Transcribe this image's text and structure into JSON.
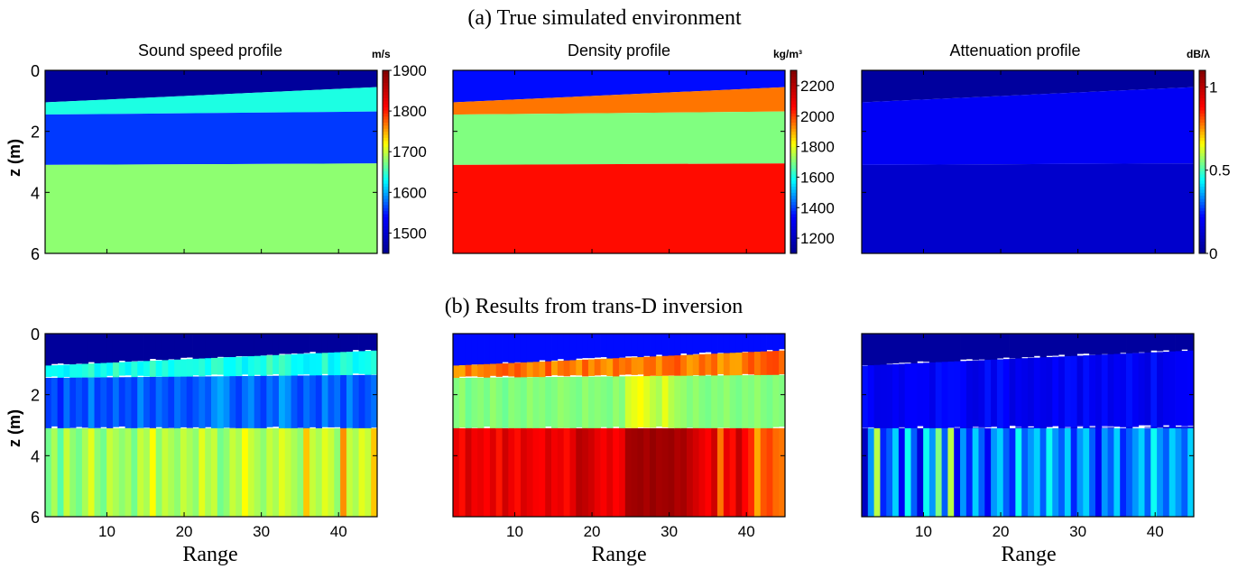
{
  "figure": {
    "title_a": "(a) True simulated environment",
    "title_b": "(b) Results from trans-D inversion",
    "ylabel": "z (m)",
    "xlabel": "Range"
  },
  "colormap": [
    "#00008f",
    "#0000ff",
    "#00ffff",
    "#ffff00",
    "#ff0000",
    "#800000"
  ],
  "chart_data": [
    {
      "type": "heatmap",
      "panel": "a",
      "title": "Sound speed profile",
      "unit": "m/s",
      "ylim": [
        6,
        0
      ],
      "yticks": [
        0,
        2,
        4,
        6
      ],
      "xlim": [
        2,
        45
      ],
      "clim": [
        1450,
        1900
      ],
      "cticks": [
        1500,
        1600,
        1700,
        1800,
        1900
      ],
      "layers": [
        {
          "top_start": 0.0,
          "top_end": 0.0,
          "value": 1460
        },
        {
          "top_start": 1.05,
          "top_end": 0.55,
          "value": 1640
        },
        {
          "top_start": 1.45,
          "top_end": 1.35,
          "value": 1560
        },
        {
          "top_start": 3.1,
          "top_end": 3.05,
          "value": 1680
        }
      ]
    },
    {
      "type": "heatmap",
      "panel": "a",
      "title": "Density profile",
      "unit": "kg/m³",
      "ylim": [
        6,
        0
      ],
      "yticks": [
        0,
        2,
        4,
        6
      ],
      "xlim": [
        2,
        45
      ],
      "clim": [
        1100,
        2300
      ],
      "cticks": [
        1200,
        1400,
        1600,
        1800,
        2000,
        2200
      ],
      "layers": [
        {
          "top_start": 0.0,
          "top_end": 0.0,
          "value": 1350
        },
        {
          "top_start": 1.05,
          "top_end": 0.55,
          "value": 1950
        },
        {
          "top_start": 1.45,
          "top_end": 1.35,
          "value": 1700
        },
        {
          "top_start": 3.1,
          "top_end": 3.05,
          "value": 2050
        }
      ]
    },
    {
      "type": "heatmap",
      "panel": "a",
      "title": "Attenuation profile",
      "unit": "dB/λ",
      "ylim": [
        6,
        0
      ],
      "yticks": [
        0,
        2,
        4,
        6
      ],
      "xlim": [
        2,
        45
      ],
      "clim": [
        0,
        1.1
      ],
      "cticks": [
        0,
        0.5,
        1
      ],
      "layers": [
        {
          "top_start": 0.0,
          "top_end": 0.0,
          "value": 0.03
        },
        {
          "top_start": 1.05,
          "top_end": 0.55,
          "value": 0.2
        },
        {
          "top_start": 3.1,
          "top_end": 3.05,
          "value": 0.12
        }
      ]
    },
    {
      "type": "heatmap",
      "panel": "b",
      "title": "",
      "ylim": [
        6,
        0
      ],
      "yticks": [
        0,
        2,
        4,
        6
      ],
      "xlim": [
        2,
        45
      ],
      "xticks": [
        10,
        20,
        30,
        40
      ],
      "clim": [
        1450,
        1900
      ],
      "columns": 54,
      "bottom_values": [
        1670,
        1690,
        1660,
        1700,
        1680,
        1670,
        1690,
        1710,
        1680,
        1670,
        1700,
        1690,
        1680,
        1690,
        1670,
        1700,
        1690,
        1720,
        1680,
        1700,
        1690,
        1680,
        1700,
        1690,
        1680,
        1710,
        1690,
        1700,
        1670,
        1680,
        1700,
        1690,
        1720,
        1700,
        1690,
        1680,
        1700,
        1690,
        1710,
        1700,
        1690,
        1680,
        1740,
        1700,
        1690,
        1710,
        1700,
        1680,
        1760,
        1700,
        1690,
        1710,
        1700,
        1740
      ],
      "middle_values": [
        1560,
        1570,
        1550,
        1580,
        1560,
        1570,
        1560,
        1590,
        1560,
        1570,
        1560,
        1580,
        1560,
        1570,
        1560,
        1590,
        1570,
        1560,
        1580,
        1570,
        1560,
        1580,
        1570,
        1560,
        1570,
        1580,
        1570,
        1590,
        1600,
        1590,
        1570,
        1560,
        1580,
        1590,
        1570,
        1560,
        1580,
        1570,
        1600,
        1590,
        1570,
        1560,
        1580,
        1570,
        1560,
        1590,
        1570,
        1580,
        1560,
        1590,
        1570,
        1560,
        1570,
        1580
      ]
    },
    {
      "type": "heatmap",
      "panel": "b",
      "title": "",
      "ylim": [
        6,
        0
      ],
      "yticks": [
        0,
        2,
        4,
        6
      ],
      "xlim": [
        2,
        45
      ],
      "xticks": [
        10,
        20,
        30,
        40
      ],
      "clim": [
        1100,
        2300
      ],
      "columns": 54,
      "bottom_values": [
        2100,
        2050,
        2150,
        2080,
        2100,
        2060,
        2120,
        2040,
        2150,
        2090,
        2050,
        2130,
        2100,
        2070,
        2060,
        2140,
        2080,
        2100,
        2050,
        2110,
        2200,
        2180,
        2150,
        2100,
        2070,
        2120,
        2060,
        2090,
        2230,
        2240,
        2250,
        2220,
        2260,
        2230,
        2240,
        2250,
        2210,
        2230,
        2180,
        2140,
        2100,
        2060,
        2150,
        1950,
        2100,
        2050,
        2180,
        2060,
        2020,
        1900,
        1980,
        2000,
        1960,
        1950
      ],
      "middle_values": [
        1700,
        1720,
        1680,
        1700,
        1710,
        1690,
        1720,
        1700,
        1680,
        1710,
        1700,
        1690,
        1720,
        1700,
        1710,
        1690,
        1700,
        1720,
        1710,
        1700,
        1690,
        1720,
        1700,
        1710,
        1700,
        1690,
        1720,
        1700,
        1780,
        1800,
        1820,
        1790,
        1760,
        1740,
        1800,
        1750,
        1730,
        1720,
        1700,
        1720,
        1700,
        1690,
        1710,
        1700,
        1720,
        1700,
        1690,
        1710,
        1700,
        1720,
        1700,
        1690,
        1710,
        1700
      ]
    },
    {
      "type": "heatmap",
      "panel": "b",
      "title": "",
      "ylim": [
        6,
        0
      ],
      "yticks": [
        0,
        2,
        4,
        6
      ],
      "xlim": [
        2,
        45
      ],
      "xticks": [
        10,
        20,
        30,
        40
      ],
      "clim": [
        0,
        1.1
      ],
      "columns": 54,
      "bottom_values": [
        0.1,
        0.35,
        0.6,
        0.25,
        0.3,
        0.4,
        0.2,
        0.45,
        0.3,
        0.15,
        0.45,
        0.35,
        0.55,
        0.3,
        0.6,
        0.2,
        0.35,
        0.25,
        0.4,
        0.3,
        0.2,
        0.35,
        0.4,
        0.3,
        0.25,
        0.45,
        0.3,
        0.35,
        0.4,
        0.3,
        0.45,
        0.35,
        0.3,
        0.4,
        0.25,
        0.35,
        0.4,
        0.3,
        0.2,
        0.35,
        0.3,
        0.4,
        0.25,
        0.3,
        0.35,
        0.4,
        0.3,
        0.45,
        0.35,
        0.3,
        0.4,
        0.35,
        0.3,
        0.4
      ],
      "middle_values": [
        0.12,
        0.15,
        0.1,
        0.18,
        0.12,
        0.15,
        0.1,
        0.2,
        0.12,
        0.14,
        0.1,
        0.16,
        0.12,
        0.15,
        0.1,
        0.18,
        0.12,
        0.1,
        0.2,
        0.14,
        0.12,
        0.18,
        0.15,
        0.12,
        0.2,
        0.16,
        0.14,
        0.22,
        0.18,
        0.15,
        0.2,
        0.16,
        0.12,
        0.18,
        0.15,
        0.2,
        0.16,
        0.12,
        0.18,
        0.2,
        0.15,
        0.12,
        0.18,
        0.16,
        0.2,
        0.15,
        0.12,
        0.18,
        0.16,
        0.14,
        0.2,
        0.15,
        0.18,
        0.16
      ]
    }
  ]
}
